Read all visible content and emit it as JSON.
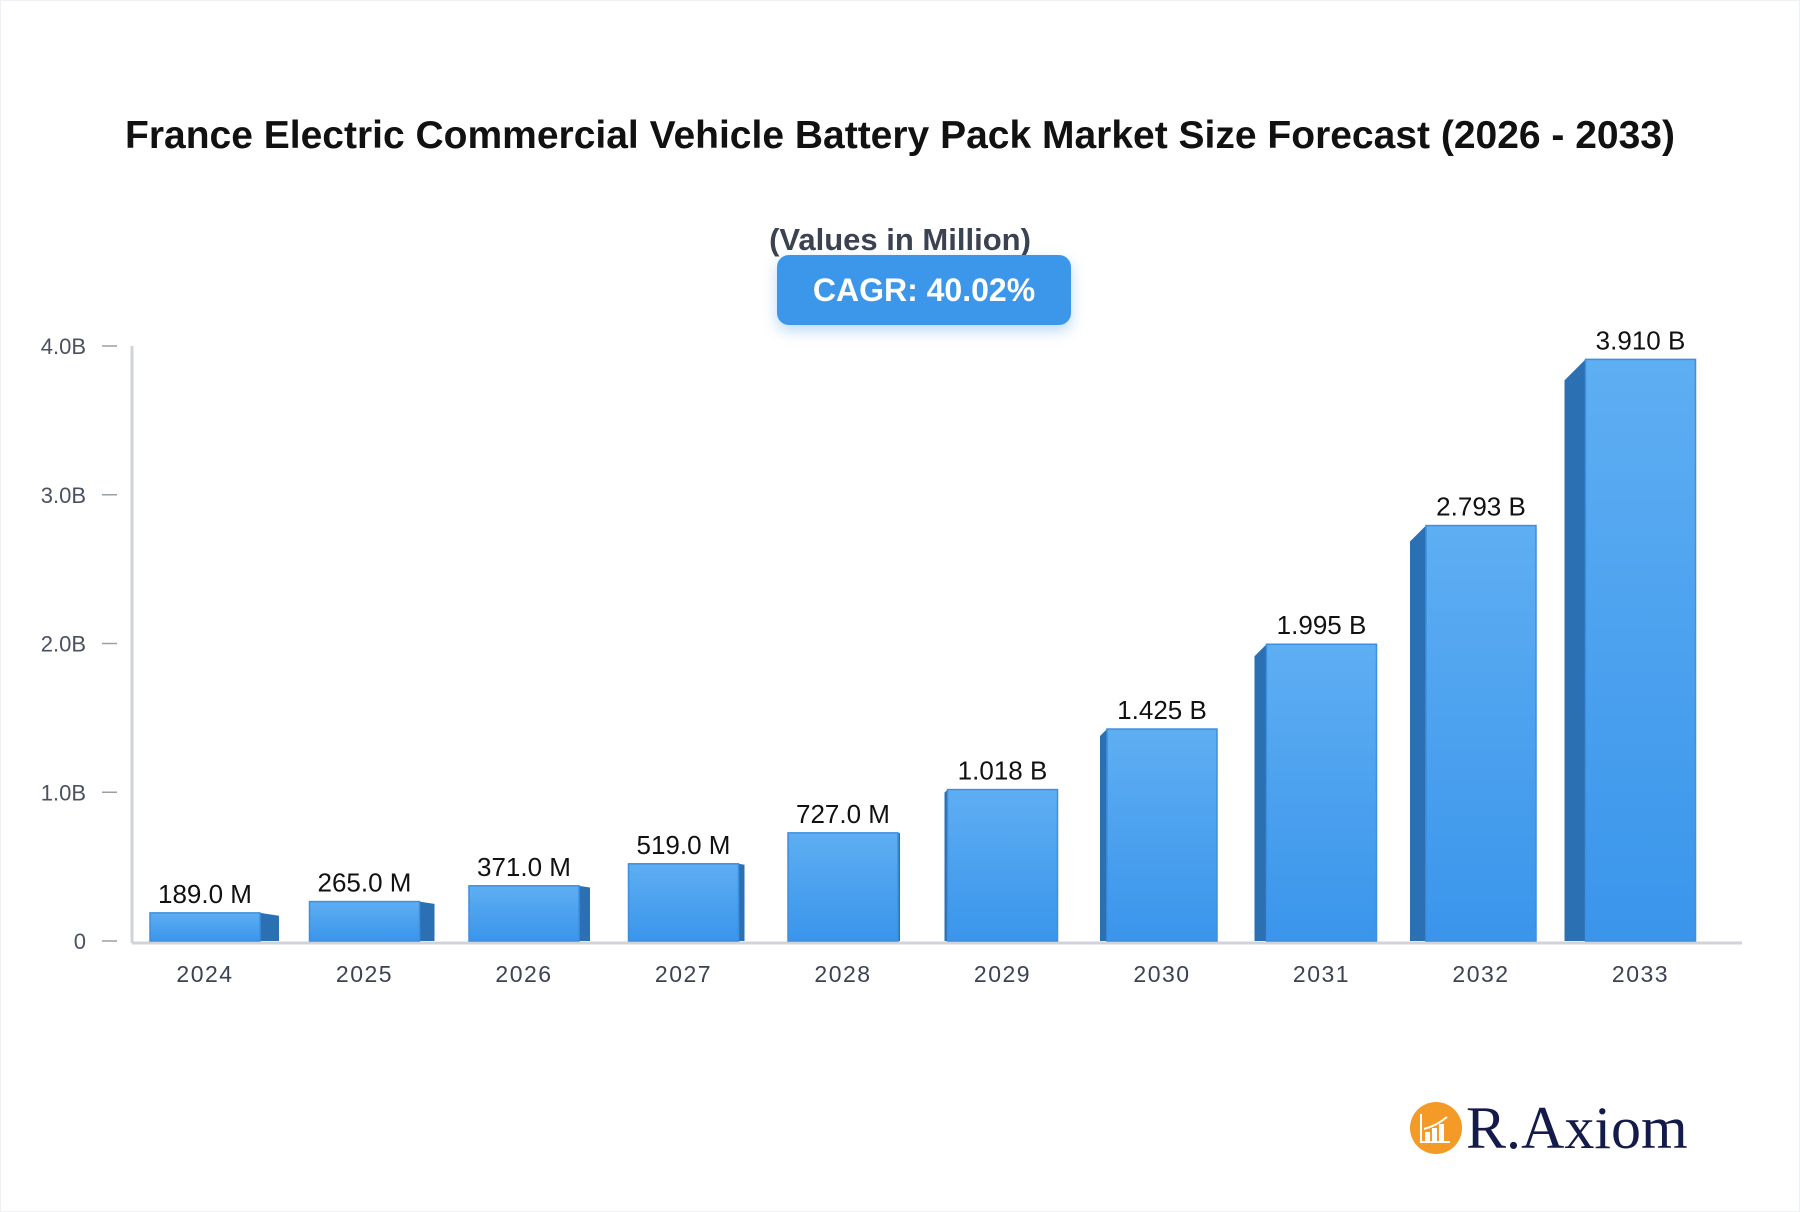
{
  "chart_data": {
    "type": "bar",
    "title": "France Electric Commercial Vehicle Battery Pack Market Size Forecast (2026 - 2033)",
    "subtitle": "(Values in Million)",
    "badge": "CAGR: 40.02%",
    "categories": [
      "2024",
      "2025",
      "2026",
      "2027",
      "2028",
      "2029",
      "2030",
      "2031",
      "2032",
      "2033"
    ],
    "values": [
      189.0,
      265.0,
      371.0,
      519.0,
      727.0,
      1018.0,
      1425.0,
      1995.0,
      2793.0,
      3910.0
    ],
    "data_labels": [
      "189.0 M",
      "265.0 M",
      "371.0 M",
      "519.0 M",
      "727.0 M",
      "1.018 B",
      "1.425 B",
      "1.995 B",
      "2.793 B",
      "3.910 B"
    ],
    "yticks": [
      0,
      1000,
      2000,
      3000,
      4000
    ],
    "ytick_labels": [
      "0",
      "1.0B",
      "2.0B",
      "3.0B",
      "4.0B"
    ],
    "ylim": [
      0,
      4000
    ],
    "xlabel": "",
    "ylabel": "",
    "grid": false,
    "colors": {
      "bar_top": "#5eaef2",
      "bar_bottom": "#3a95eb",
      "bar_side": "#2b70b2",
      "axis": "#d0d3da",
      "badge": "#3c97ea"
    }
  },
  "logo": {
    "text": "R.Axiom",
    "icon": "chart-growth-icon",
    "color": "#f39a27"
  }
}
